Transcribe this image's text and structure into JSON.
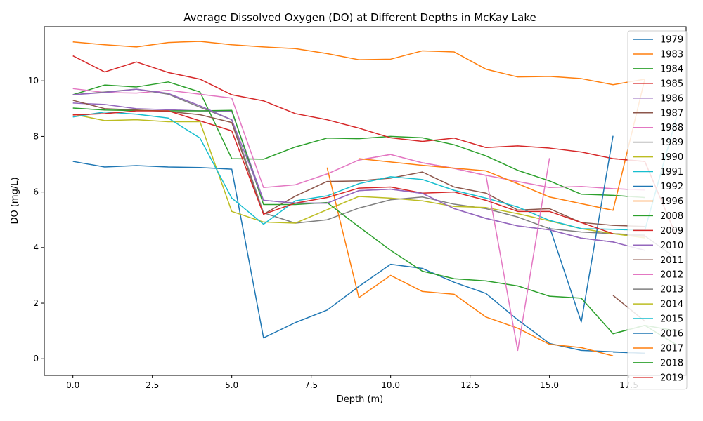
{
  "chart_data": {
    "type": "line",
    "title": "Average Dissolved Oxygen (DO) at Different Depths in McKay Lake",
    "xlabel": "Depth (m)",
    "ylabel": "DO (mg/L)",
    "xlim": [
      -0.9,
      19.3
    ],
    "ylim": [
      -0.6,
      11.95
    ],
    "x_ticks": [
      0.0,
      2.5,
      5.0,
      7.5,
      10.0,
      12.5,
      15.0,
      17.5
    ],
    "x_tick_labels": [
      "0.0",
      "2.5",
      "5.0",
      "7.5",
      "10.0",
      "12.5",
      "15.0",
      "17.5"
    ],
    "y_ticks": [
      0,
      2,
      4,
      6,
      8,
      10
    ],
    "y_tick_labels": [
      "0",
      "2",
      "4",
      "6",
      "8",
      "10"
    ],
    "grid": false,
    "legend_position": "right",
    "series": [
      {
        "name": "1979",
        "color": "#1f77b4",
        "x": [
          0,
          1,
          2,
          3,
          4,
          5,
          6,
          7,
          8,
          9,
          10,
          11,
          12,
          13,
          14,
          15,
          16,
          17,
          18
        ],
        "y": [
          7.1,
          6.9,
          6.95,
          6.9,
          6.88,
          6.82,
          0.75,
          1.3,
          1.75,
          2.6,
          3.4,
          3.25,
          2.75,
          2.35,
          1.4,
          0.55,
          0.3,
          0.25,
          0.2
        ]
      },
      {
        "name": "1983",
        "color": "#ff7f0e",
        "x": [
          0,
          1,
          2,
          3,
          4,
          5,
          6,
          7,
          8,
          9,
          10,
          11,
          12,
          13,
          14,
          15,
          16,
          17,
          18
        ],
        "y": [
          11.4,
          11.3,
          11.22,
          11.38,
          11.42,
          11.3,
          11.22,
          11.16,
          10.98,
          10.76,
          10.78,
          11.08,
          11.04,
          10.42,
          10.14,
          10.16,
          10.08,
          9.86,
          10.06
        ]
      },
      {
        "name": "1984",
        "color": "#2ca02c",
        "x": [
          0,
          1,
          2,
          3,
          4,
          5,
          6,
          7,
          8,
          9,
          10,
          11,
          12,
          13,
          14,
          15,
          16,
          17,
          18
        ],
        "y": [
          9.5,
          9.85,
          9.78,
          9.96,
          9.6,
          7.2,
          7.18,
          7.62,
          7.94,
          7.92,
          8.0,
          7.95,
          7.7,
          7.3,
          6.78,
          6.4,
          5.92,
          5.88,
          5.8
        ]
      },
      {
        "name": "1985",
        "color": "#d62728",
        "x": [
          0,
          1,
          2,
          3,
          4,
          5,
          6,
          7,
          8,
          9,
          10,
          11,
          12,
          13,
          14,
          15,
          16,
          17,
          18
        ],
        "y": [
          10.9,
          10.32,
          10.68,
          10.3,
          10.06,
          9.5,
          9.28,
          8.82,
          8.6,
          8.3,
          7.95,
          7.82,
          7.94,
          7.6,
          7.66,
          7.58,
          7.44,
          7.2,
          7.1
        ]
      },
      {
        "name": "1986",
        "color": "#9467bd",
        "x": [
          0,
          1,
          2,
          3,
          4,
          5,
          6,
          7,
          8,
          9,
          10,
          11,
          12,
          13,
          14,
          15,
          16,
          17,
          18
        ],
        "y": [
          9.2,
          9.15,
          9.0,
          8.96,
          8.92,
          8.9,
          5.7,
          5.6,
          5.6,
          6.05,
          6.1,
          5.95,
          5.4,
          5.05,
          4.78,
          4.64,
          4.34,
          4.2,
          3.9
        ]
      },
      {
        "name": "1987",
        "color": "#8c564b",
        "x": [
          0,
          1,
          2,
          3,
          4,
          5,
          6,
          7,
          8,
          9,
          10,
          11,
          12,
          13,
          14,
          15,
          16,
          17,
          18
        ],
        "y": [
          9.3,
          9.0,
          8.95,
          8.9,
          8.78,
          8.5,
          5.2,
          5.85,
          6.38,
          6.4,
          6.5,
          6.72,
          6.18,
          5.96,
          5.35,
          5.4,
          4.9,
          4.8,
          4.76
        ]
      },
      {
        "name": "1988",
        "color": "#e377c2",
        "x": [
          0,
          1,
          2,
          3,
          4,
          5,
          6,
          7,
          8,
          9,
          10,
          11,
          12,
          13,
          14,
          15,
          16,
          17,
          18
        ],
        "y": [
          9.72,
          9.58,
          9.56,
          9.66,
          9.52,
          9.38,
          6.16,
          6.26,
          6.65,
          7.15,
          7.35,
          7.05,
          6.85,
          6.6,
          6.38,
          6.16,
          6.2,
          6.12,
          6.07
        ]
      },
      {
        "name": "1989",
        "color": "#7f7f7f",
        "x": [
          0,
          1,
          2,
          3,
          4,
          5,
          6,
          7,
          8,
          9,
          10,
          11,
          12,
          13,
          14,
          15,
          16,
          17,
          18
        ],
        "y": [
          9.5,
          9.6,
          9.7,
          9.52,
          9.05,
          8.6,
          5.25,
          4.88,
          5.0,
          5.42,
          5.72,
          5.82,
          5.56,
          5.4,
          5.1,
          4.68,
          4.56,
          4.5,
          4.45
        ]
      },
      {
        "name": "1990",
        "color": "#bcbd22",
        "x": [
          0,
          1,
          2,
          3,
          4,
          5,
          6,
          7,
          8,
          9,
          10,
          11,
          12,
          13,
          14,
          15,
          16,
          17,
          18
        ],
        "y": [
          8.8,
          8.57,
          8.6,
          8.53,
          8.53,
          5.3,
          4.92,
          4.88,
          5.36,
          5.84,
          5.78,
          5.68,
          5.48,
          5.44,
          5.22,
          4.96,
          4.68,
          4.5,
          4.42
        ]
      },
      {
        "name": "1991",
        "color": "#17becf",
        "x": [
          0,
          1,
          2,
          3,
          4,
          5,
          6,
          7,
          8,
          9,
          10,
          11,
          12,
          13,
          14,
          15,
          16,
          17,
          18,
          19
        ],
        "y": [
          8.7,
          8.88,
          8.8,
          8.66,
          7.94,
          5.78,
          4.84,
          5.68,
          5.86,
          6.3,
          6.55,
          6.45,
          6.06,
          5.78,
          5.46,
          4.98,
          4.68,
          4.66,
          4.62,
          8.7
        ]
      },
      {
        "name": "1992",
        "color": "#1f77b4",
        "x": [
          15,
          16,
          17
        ],
        "y": [
          4.75,
          1.32,
          8.02
        ]
      },
      {
        "name": "1996",
        "color": "#ff7f0e",
        "x": [
          8,
          9,
          10,
          11,
          12,
          13,
          14,
          15,
          16,
          17
        ],
        "y": [
          6.88,
          2.2,
          3.0,
          2.42,
          2.32,
          1.5,
          1.1,
          0.52,
          0.4,
          0.1
        ]
      },
      {
        "name": "2008",
        "color": "#2ca02c",
        "x": [
          0,
          1,
          2,
          3,
          4,
          5,
          6,
          7,
          8,
          9,
          10,
          11,
          12,
          13,
          14,
          15,
          16,
          17,
          18,
          19
        ],
        "y": [
          9.02,
          8.95,
          8.93,
          8.92,
          8.92,
          8.94,
          5.55,
          5.55,
          5.62,
          4.75,
          3.9,
          3.15,
          2.88,
          2.8,
          2.62,
          2.25,
          2.18,
          0.9,
          1.2,
          0.5
        ]
      },
      {
        "name": "2009",
        "color": "#d62728",
        "x": [
          0,
          1,
          2,
          3,
          4,
          5,
          6,
          7,
          8,
          9,
          10,
          11,
          12,
          13,
          14,
          15,
          16,
          17,
          18
        ],
        "y": [
          8.77,
          8.82,
          8.92,
          8.92,
          8.56,
          8.2,
          5.2,
          5.6,
          5.8,
          6.14,
          6.18,
          5.96,
          6.0,
          5.7,
          5.3,
          5.3,
          4.9,
          4.5,
          4.4
        ]
      },
      {
        "name": "2010",
        "color": "#9467bd",
        "x": [
          0,
          1,
          2,
          3,
          4,
          5,
          6,
          7,
          8,
          9,
          10,
          11,
          12,
          13,
          14,
          15,
          16,
          17,
          18
        ],
        "y": [
          9.5,
          9.58,
          9.7,
          9.55,
          9.1,
          8.6,
          5.7,
          5.6,
          5.6,
          6.05,
          6.1,
          5.95,
          5.4,
          5.05,
          4.78,
          4.64,
          4.34,
          4.2,
          3.9
        ]
      },
      {
        "name": "2011",
        "color": "#8c564b",
        "x": [
          17,
          18
        ],
        "y": [
          2.28,
          1.35
        ]
      },
      {
        "name": "2012",
        "color": "#e377c2",
        "x": [
          9,
          10,
          11,
          12,
          13,
          14,
          15
        ],
        "y": [
          7.15,
          7.35,
          7.05,
          6.85,
          6.6,
          0.3,
          7.22
        ]
      },
      {
        "name": "2013",
        "color": "#7f7f7f",
        "x": [
          17,
          18,
          19
        ],
        "y": [
          4.5,
          4.42,
          3.6
        ]
      },
      {
        "name": "2014",
        "color": "#bcbd22",
        "x": [
          17,
          18
        ],
        "y": [
          4.5,
          4.35
        ]
      },
      {
        "name": "2015",
        "color": "#17becf",
        "x": [
          17,
          18,
          19
        ],
        "y": [
          4.66,
          4.62,
          8.7
        ]
      },
      {
        "name": "2016",
        "color": "#1f77b4",
        "x": [
          17,
          18
        ],
        "y": [
          0.24,
          0.2
        ]
      },
      {
        "name": "2017",
        "color": "#ff7f0e",
        "x": [
          9,
          10,
          11,
          12,
          13,
          14,
          15,
          16,
          17,
          18
        ],
        "y": [
          7.2,
          7.08,
          6.96,
          6.86,
          6.76,
          6.3,
          5.82,
          5.58,
          5.34,
          10.06
        ]
      },
      {
        "name": "2018",
        "color": "#2ca02c",
        "x": [
          17,
          18,
          19
        ],
        "y": [
          0.9,
          1.2,
          1.0
        ]
      },
      {
        "name": "2019",
        "color": "#d62728",
        "x": [
          17,
          18,
          19
        ],
        "y": [
          7.2,
          7.1,
          4.4
        ]
      }
    ]
  }
}
